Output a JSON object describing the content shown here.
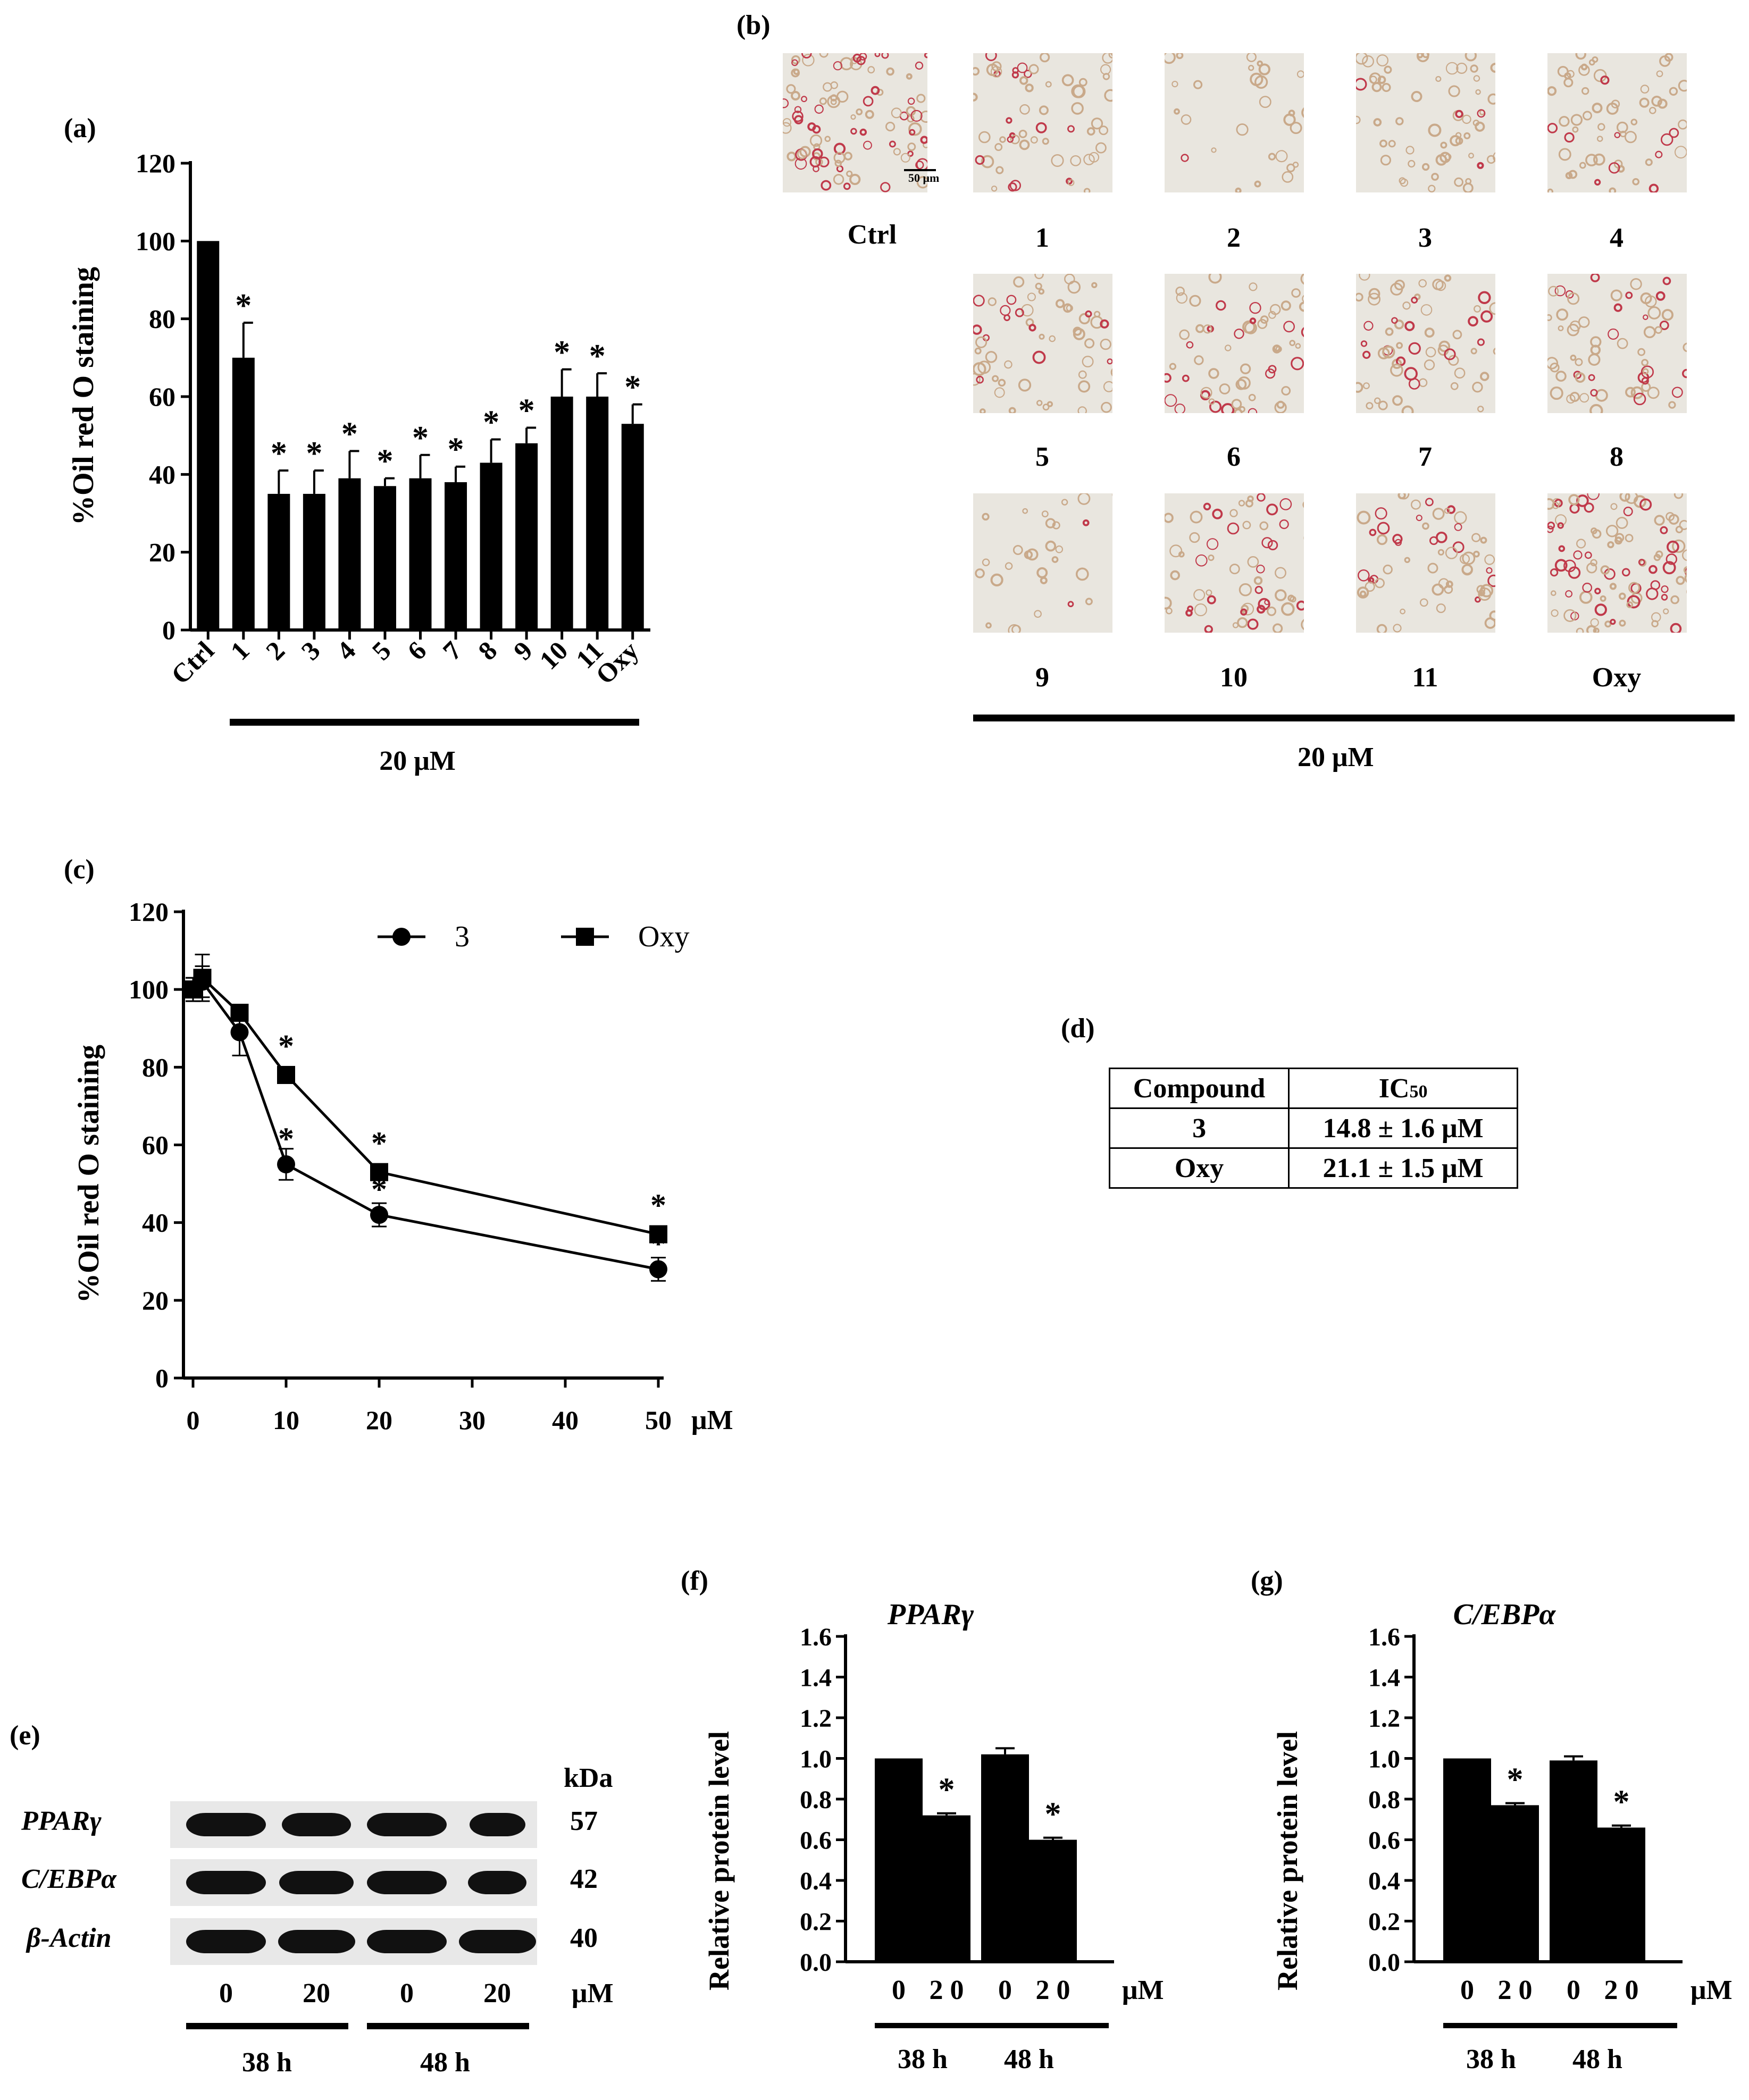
{
  "panel_labels": {
    "a": "(a)",
    "b": "(b)",
    "c": "(c)",
    "d": "(d)",
    "e": "(e)",
    "f": "(f)",
    "g": "(g)"
  },
  "colors": {
    "bar": "#000000",
    "micro_bg": "#e9e6df",
    "stain_red": "#c0394a",
    "stain_tan": "#c9a98a"
  },
  "chart_data": [
    {
      "id": "a",
      "type": "bar",
      "title": "",
      "ylabel": "%Oil red O staining",
      "xlabel": "",
      "ylim": [
        0,
        120
      ],
      "yticks": [
        0,
        20,
        40,
        60,
        80,
        100,
        120
      ],
      "categories": [
        "Ctrl",
        "1",
        "2",
        "3",
        "4",
        "5",
        "6",
        "7",
        "8",
        "9",
        "10",
        "11",
        "Oxy"
      ],
      "values": [
        100,
        70,
        35,
        35,
        39,
        37,
        39,
        38,
        43,
        48,
        60,
        60,
        53
      ],
      "errors": [
        0,
        9,
        6,
        6,
        7,
        2,
        6,
        4,
        6,
        4,
        7,
        6,
        5
      ],
      "significant": [
        false,
        true,
        true,
        true,
        true,
        true,
        true,
        true,
        true,
        true,
        true,
        true,
        true
      ],
      "group_label": "20 μM"
    },
    {
      "id": "c",
      "type": "line",
      "ylabel": "%Oil red O staining",
      "xlabel": "μM",
      "xlim": [
        0,
        50
      ],
      "ylim": [
        0,
        120
      ],
      "xticks": [
        0,
        10,
        20,
        30,
        40,
        50
      ],
      "yticks": [
        0,
        20,
        40,
        60,
        80,
        100,
        120
      ],
      "series": [
        {
          "name": "3",
          "marker": "circle",
          "x": [
            0,
            1,
            5,
            10,
            20,
            50
          ],
          "values": [
            100,
            102,
            89,
            55,
            42,
            28
          ],
          "errors": [
            3,
            4,
            6,
            4,
            3,
            3
          ],
          "significant": [
            false,
            false,
            false,
            true,
            true,
            true
          ]
        },
        {
          "name": "Oxy",
          "marker": "square",
          "x": [
            0,
            1,
            5,
            10,
            20,
            50
          ],
          "values": [
            100,
            103,
            94,
            78,
            53,
            37
          ],
          "errors": [
            3,
            6,
            2,
            2,
            2,
            2
          ],
          "significant": [
            false,
            false,
            false,
            true,
            true,
            true
          ]
        }
      ]
    },
    {
      "id": "f",
      "type": "bar",
      "title": "PPARγ",
      "ylabel": "Relative protein level",
      "xlabel": "μM",
      "ylim": [
        0,
        1.6
      ],
      "yticks": [
        "0.0",
        "0.2",
        "0.4",
        "0.6",
        "0.8",
        "1.0",
        "1.2",
        "1.4",
        "1.6"
      ],
      "categories": [
        "0",
        "2 0",
        "0",
        "2 0"
      ],
      "values": [
        1.0,
        0.72,
        1.02,
        0.6
      ],
      "errors": [
        0,
        0.01,
        0.03,
        0.01
      ],
      "significant": [
        false,
        true,
        false,
        true
      ],
      "groups": [
        "38 h",
        "48 h"
      ]
    },
    {
      "id": "g",
      "type": "bar",
      "title": "C/EBPα",
      "ylabel": "Relative protein level",
      "xlabel": "μM",
      "ylim": [
        0,
        1.6
      ],
      "yticks": [
        "0.0",
        "0.2",
        "0.4",
        "0.6",
        "0.8",
        "1.0",
        "1.2",
        "1.4",
        "1.6"
      ],
      "categories": [
        "0",
        "2 0",
        "0",
        "2 0"
      ],
      "values": [
        1.0,
        0.77,
        0.99,
        0.66
      ],
      "errors": [
        0,
        0.01,
        0.02,
        0.01
      ],
      "significant": [
        false,
        true,
        false,
        true
      ],
      "groups": [
        "38 h",
        "48 h"
      ]
    }
  ],
  "panel_b": {
    "images": [
      {
        "label": "Ctrl",
        "density": "high",
        "red": 0.45
      },
      {
        "label": "1",
        "density": "mid",
        "red": 0.3
      },
      {
        "label": "2",
        "density": "low",
        "red": 0.02
      },
      {
        "label": "3",
        "density": "mid",
        "red": 0.05
      },
      {
        "label": "4",
        "density": "mid",
        "red": 0.1
      },
      {
        "label": "5",
        "density": "mid",
        "red": 0.15
      },
      {
        "label": "6",
        "density": "mid",
        "red": 0.25
      },
      {
        "label": "7",
        "density": "mid",
        "red": 0.2
      },
      {
        "label": "8",
        "density": "mid",
        "red": 0.3
      },
      {
        "label": "9",
        "density": "low",
        "red": 0.1
      },
      {
        "label": "10",
        "density": "mid",
        "red": 0.25
      },
      {
        "label": "11",
        "density": "mid",
        "red": 0.3
      },
      {
        "label": "Oxy",
        "density": "high",
        "red": 0.35
      }
    ],
    "scale_bar": "50 μm",
    "group_label": "20 μM"
  },
  "panel_d": {
    "headers": [
      "Compound",
      "IC50"
    ],
    "rows": [
      [
        "3",
        "14.8 ± 1.6 μM"
      ],
      [
        "Oxy",
        "21.1 ± 1.5 μM"
      ]
    ]
  },
  "panel_e": {
    "kda_label": "kDa",
    "rows": [
      {
        "name": "PPARγ",
        "kda": "57"
      },
      {
        "name": "C/EBPα",
        "kda": "42"
      },
      {
        "name": "β-Actin",
        "kda": "40"
      }
    ],
    "lanes": [
      "0",
      "20",
      "0",
      "20"
    ],
    "unit": "μM",
    "groups": [
      "38 h",
      "48 h"
    ]
  }
}
